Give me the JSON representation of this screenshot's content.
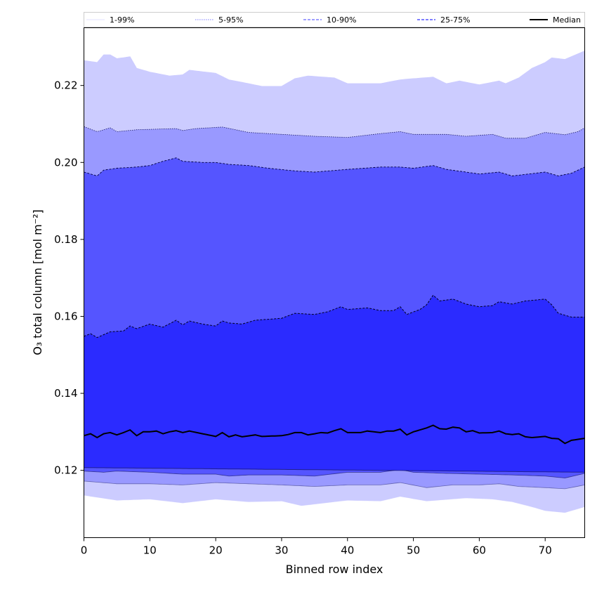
{
  "chart_data": {
    "type": "area",
    "xlabel": "Binned row index",
    "ylabel": "O₃ total column [mol m⁻²]",
    "xlim": [
      0,
      76
    ],
    "ylim": [
      0.1025,
      0.235
    ],
    "xticks": [
      0,
      10,
      20,
      30,
      40,
      50,
      60,
      70
    ],
    "yticks": [
      0.12,
      0.14,
      0.16,
      0.18,
      0.2,
      0.22
    ],
    "ytick_labels": [
      "0.12",
      "0.14",
      "0.16",
      "0.18",
      "0.20",
      "0.22"
    ],
    "grid": false,
    "legend_position": "top",
    "legend": [
      {
        "label": "1-99%",
        "color": "#e6e6ff",
        "style": "solid"
      },
      {
        "label": "5-95%",
        "color": "#9999ff",
        "style": "dotted"
      },
      {
        "label": "10-90%",
        "color": "#6666ff",
        "style": "dashed"
      },
      {
        "label": "25-75%",
        "color": "#3333ff",
        "style": "dashed"
      },
      {
        "label": "Median",
        "color": "#000000",
        "style": "solid"
      }
    ],
    "bands": [
      {
        "name": "1-99%",
        "fill": "#ccccff",
        "lower": [
          [
            0,
            0.1135
          ],
          [
            5,
            0.1122
          ],
          [
            10,
            0.1125
          ],
          [
            15,
            0.1115
          ],
          [
            20,
            0.1125
          ],
          [
            25,
            0.1118
          ],
          [
            30,
            0.112
          ],
          [
            33,
            0.1108
          ],
          [
            40,
            0.1122
          ],
          [
            45,
            0.112
          ],
          [
            48,
            0.1132
          ],
          [
            52,
            0.112
          ],
          [
            58,
            0.1128
          ],
          [
            62,
            0.1125
          ],
          [
            65,
            0.1118
          ],
          [
            68,
            0.1105
          ],
          [
            70,
            0.1095
          ],
          [
            73,
            0.109
          ],
          [
            76,
            0.1105
          ]
        ],
        "upper": [
          [
            0,
            0.2265
          ],
          [
            2,
            0.226
          ],
          [
            3,
            0.228
          ],
          [
            4,
            0.228
          ],
          [
            5,
            0.227
          ],
          [
            7,
            0.2275
          ],
          [
            8,
            0.2245
          ],
          [
            10,
            0.2235
          ],
          [
            13,
            0.2225
          ],
          [
            15,
            0.2228
          ],
          [
            16,
            0.224
          ],
          [
            20,
            0.2232
          ],
          [
            22,
            0.2215
          ],
          [
            25,
            0.2205
          ],
          [
            27,
            0.2198
          ],
          [
            30,
            0.2198
          ],
          [
            32,
            0.2218
          ],
          [
            34,
            0.2225
          ],
          [
            38,
            0.222
          ],
          [
            40,
            0.2205
          ],
          [
            45,
            0.2205
          ],
          [
            48,
            0.2215
          ],
          [
            50,
            0.2218
          ],
          [
            53,
            0.2222
          ],
          [
            55,
            0.2205
          ],
          [
            57,
            0.2212
          ],
          [
            60,
            0.2202
          ],
          [
            63,
            0.2212
          ],
          [
            64,
            0.2205
          ],
          [
            66,
            0.222
          ],
          [
            68,
            0.2245
          ],
          [
            70,
            0.226
          ],
          [
            71,
            0.2272
          ],
          [
            73,
            0.2268
          ],
          [
            76,
            0.229
          ]
        ]
      },
      {
        "name": "5-95%",
        "fill": "#9999ff",
        "lower": [
          [
            0,
            0.1172
          ],
          [
            5,
            0.1165
          ],
          [
            10,
            0.1165
          ],
          [
            15,
            0.1162
          ],
          [
            20,
            0.1168
          ],
          [
            25,
            0.1165
          ],
          [
            30,
            0.1162
          ],
          [
            35,
            0.1158
          ],
          [
            40,
            0.1162
          ],
          [
            45,
            0.1162
          ],
          [
            48,
            0.1168
          ],
          [
            52,
            0.1155
          ],
          [
            56,
            0.1162
          ],
          [
            60,
            0.1162
          ],
          [
            63,
            0.1165
          ],
          [
            66,
            0.1158
          ],
          [
            70,
            0.1155
          ],
          [
            73,
            0.1152
          ],
          [
            76,
            0.1162
          ]
        ],
        "upper": [
          [
            0,
            0.2093
          ],
          [
            2,
            0.208
          ],
          [
            4,
            0.209
          ],
          [
            5,
            0.208
          ],
          [
            8,
            0.2085
          ],
          [
            12,
            0.2087
          ],
          [
            14,
            0.2088
          ],
          [
            15,
            0.2083
          ],
          [
            17,
            0.2088
          ],
          [
            21,
            0.2092
          ],
          [
            23,
            0.2085
          ],
          [
            25,
            0.2078
          ],
          [
            30,
            0.2073
          ],
          [
            35,
            0.2068
          ],
          [
            40,
            0.2065
          ],
          [
            45,
            0.2075
          ],
          [
            48,
            0.208
          ],
          [
            50,
            0.2073
          ],
          [
            55,
            0.2073
          ],
          [
            58,
            0.2068
          ],
          [
            62,
            0.2073
          ],
          [
            64,
            0.2063
          ],
          [
            67,
            0.2063
          ],
          [
            70,
            0.2078
          ],
          [
            73,
            0.2072
          ],
          [
            75,
            0.208
          ],
          [
            76,
            0.209
          ]
        ]
      },
      {
        "name": "10-90%",
        "fill": "#5555ff",
        "lower": [
          [
            0,
            0.1198
          ],
          [
            3,
            0.1195
          ],
          [
            5,
            0.1198
          ],
          [
            10,
            0.1195
          ],
          [
            15,
            0.119
          ],
          [
            20,
            0.119
          ],
          [
            22,
            0.1185
          ],
          [
            25,
            0.1188
          ],
          [
            30,
            0.1188
          ],
          [
            35,
            0.1185
          ],
          [
            40,
            0.1195
          ],
          [
            45,
            0.1195
          ],
          [
            48,
            0.1202
          ],
          [
            50,
            0.1195
          ],
          [
            55,
            0.1192
          ],
          [
            60,
            0.119
          ],
          [
            65,
            0.1188
          ],
          [
            70,
            0.1185
          ],
          [
            73,
            0.118
          ],
          [
            76,
            0.1192
          ]
        ],
        "upper": [
          [
            0,
            0.1975
          ],
          [
            2,
            0.1965
          ],
          [
            3,
            0.198
          ],
          [
            5,
            0.1985
          ],
          [
            8,
            0.1988
          ],
          [
            10,
            0.1992
          ],
          [
            12,
            0.2003
          ],
          [
            14,
            0.2012
          ],
          [
            15,
            0.2003
          ],
          [
            18,
            0.2
          ],
          [
            20,
            0.2
          ],
          [
            22,
            0.1995
          ],
          [
            25,
            0.1992
          ],
          [
            28,
            0.1985
          ],
          [
            32,
            0.1978
          ],
          [
            35,
            0.1975
          ],
          [
            40,
            0.1982
          ],
          [
            45,
            0.1988
          ],
          [
            48,
            0.1988
          ],
          [
            50,
            0.1985
          ],
          [
            53,
            0.1992
          ],
          [
            55,
            0.1982
          ],
          [
            58,
            0.1975
          ],
          [
            60,
            0.197
          ],
          [
            63,
            0.1975
          ],
          [
            65,
            0.1965
          ],
          [
            70,
            0.1975
          ],
          [
            72,
            0.1965
          ],
          [
            74,
            0.1972
          ],
          [
            76,
            0.1988
          ]
        ]
      },
      {
        "name": "25-75%",
        "fill": "#2b2bff",
        "lower": [
          [
            0,
            0.1207
          ],
          [
            76,
            0.1195
          ]
        ],
        "upper": [
          [
            0,
            0.1548
          ],
          [
            1,
            0.1555
          ],
          [
            2,
            0.1545
          ],
          [
            4,
            0.156
          ],
          [
            6,
            0.1562
          ],
          [
            7,
            0.1575
          ],
          [
            8,
            0.1568
          ],
          [
            10,
            0.158
          ],
          [
            12,
            0.1572
          ],
          [
            14,
            0.159
          ],
          [
            15,
            0.1578
          ],
          [
            16,
            0.1588
          ],
          [
            18,
            0.158
          ],
          [
            20,
            0.1575
          ],
          [
            21,
            0.1588
          ],
          [
            22,
            0.1583
          ],
          [
            24,
            0.158
          ],
          [
            26,
            0.159
          ],
          [
            30,
            0.1595
          ],
          [
            32,
            0.1608
          ],
          [
            35,
            0.1605
          ],
          [
            37,
            0.1612
          ],
          [
            39,
            0.1625
          ],
          [
            40,
            0.1618
          ],
          [
            43,
            0.1622
          ],
          [
            45,
            0.1615
          ],
          [
            47,
            0.1615
          ],
          [
            48,
            0.1625
          ],
          [
            49,
            0.1605
          ],
          [
            51,
            0.1618
          ],
          [
            52,
            0.163
          ],
          [
            53,
            0.1655
          ],
          [
            54,
            0.164
          ],
          [
            56,
            0.1645
          ],
          [
            58,
            0.1632
          ],
          [
            60,
            0.1625
          ],
          [
            62,
            0.1628
          ],
          [
            63,
            0.1638
          ],
          [
            65,
            0.1632
          ],
          [
            67,
            0.164
          ],
          [
            70,
            0.1645
          ],
          [
            71,
            0.163
          ],
          [
            72,
            0.1608
          ],
          [
            74,
            0.1598
          ],
          [
            76,
            0.1598
          ]
        ]
      }
    ],
    "median": {
      "name": "Median",
      "color": "#000000",
      "points": [
        [
          0,
          0.129
        ],
        [
          1,
          0.1295
        ],
        [
          2,
          0.1285
        ],
        [
          3,
          0.1295
        ],
        [
          4,
          0.1298
        ],
        [
          5,
          0.1292
        ],
        [
          6,
          0.1298
        ],
        [
          7,
          0.1305
        ],
        [
          8,
          0.129
        ],
        [
          9,
          0.13
        ],
        [
          10,
          0.13
        ],
        [
          11,
          0.1302
        ],
        [
          12,
          0.1295
        ],
        [
          13,
          0.13
        ],
        [
          14,
          0.1303
        ],
        [
          15,
          0.1298
        ],
        [
          16,
          0.1302
        ],
        [
          18,
          0.1295
        ],
        [
          20,
          0.1288
        ],
        [
          21,
          0.1298
        ],
        [
          22,
          0.1287
        ],
        [
          23,
          0.1292
        ],
        [
          24,
          0.1287
        ],
        [
          26,
          0.1292
        ],
        [
          27,
          0.1288
        ],
        [
          30,
          0.129
        ],
        [
          31,
          0.1293
        ],
        [
          32,
          0.1298
        ],
        [
          33,
          0.1298
        ],
        [
          34,
          0.1292
        ],
        [
          35,
          0.1295
        ],
        [
          36,
          0.1298
        ],
        [
          37,
          0.1297
        ],
        [
          38,
          0.1303
        ],
        [
          39,
          0.1308
        ],
        [
          40,
          0.1298
        ],
        [
          42,
          0.1298
        ],
        [
          43,
          0.1302
        ],
        [
          45,
          0.1298
        ],
        [
          46,
          0.1302
        ],
        [
          47,
          0.1302
        ],
        [
          48,
          0.1307
        ],
        [
          49,
          0.1292
        ],
        [
          50,
          0.13
        ],
        [
          51,
          0.1305
        ],
        [
          52,
          0.131
        ],
        [
          53,
          0.1317
        ],
        [
          54,
          0.1308
        ],
        [
          55,
          0.1307
        ],
        [
          56,
          0.1312
        ],
        [
          57,
          0.131
        ],
        [
          58,
          0.13
        ],
        [
          59,
          0.1303
        ],
        [
          60,
          0.1297
        ],
        [
          62,
          0.1298
        ],
        [
          63,
          0.1302
        ],
        [
          64,
          0.1295
        ],
        [
          65,
          0.1293
        ],
        [
          66,
          0.1295
        ],
        [
          67,
          0.1287
        ],
        [
          68,
          0.1285
        ],
        [
          70,
          0.1288
        ],
        [
          71,
          0.1283
        ],
        [
          72,
          0.1282
        ],
        [
          73,
          0.127
        ],
        [
          74,
          0.1278
        ],
        [
          76,
          0.1283
        ]
      ]
    }
  }
}
